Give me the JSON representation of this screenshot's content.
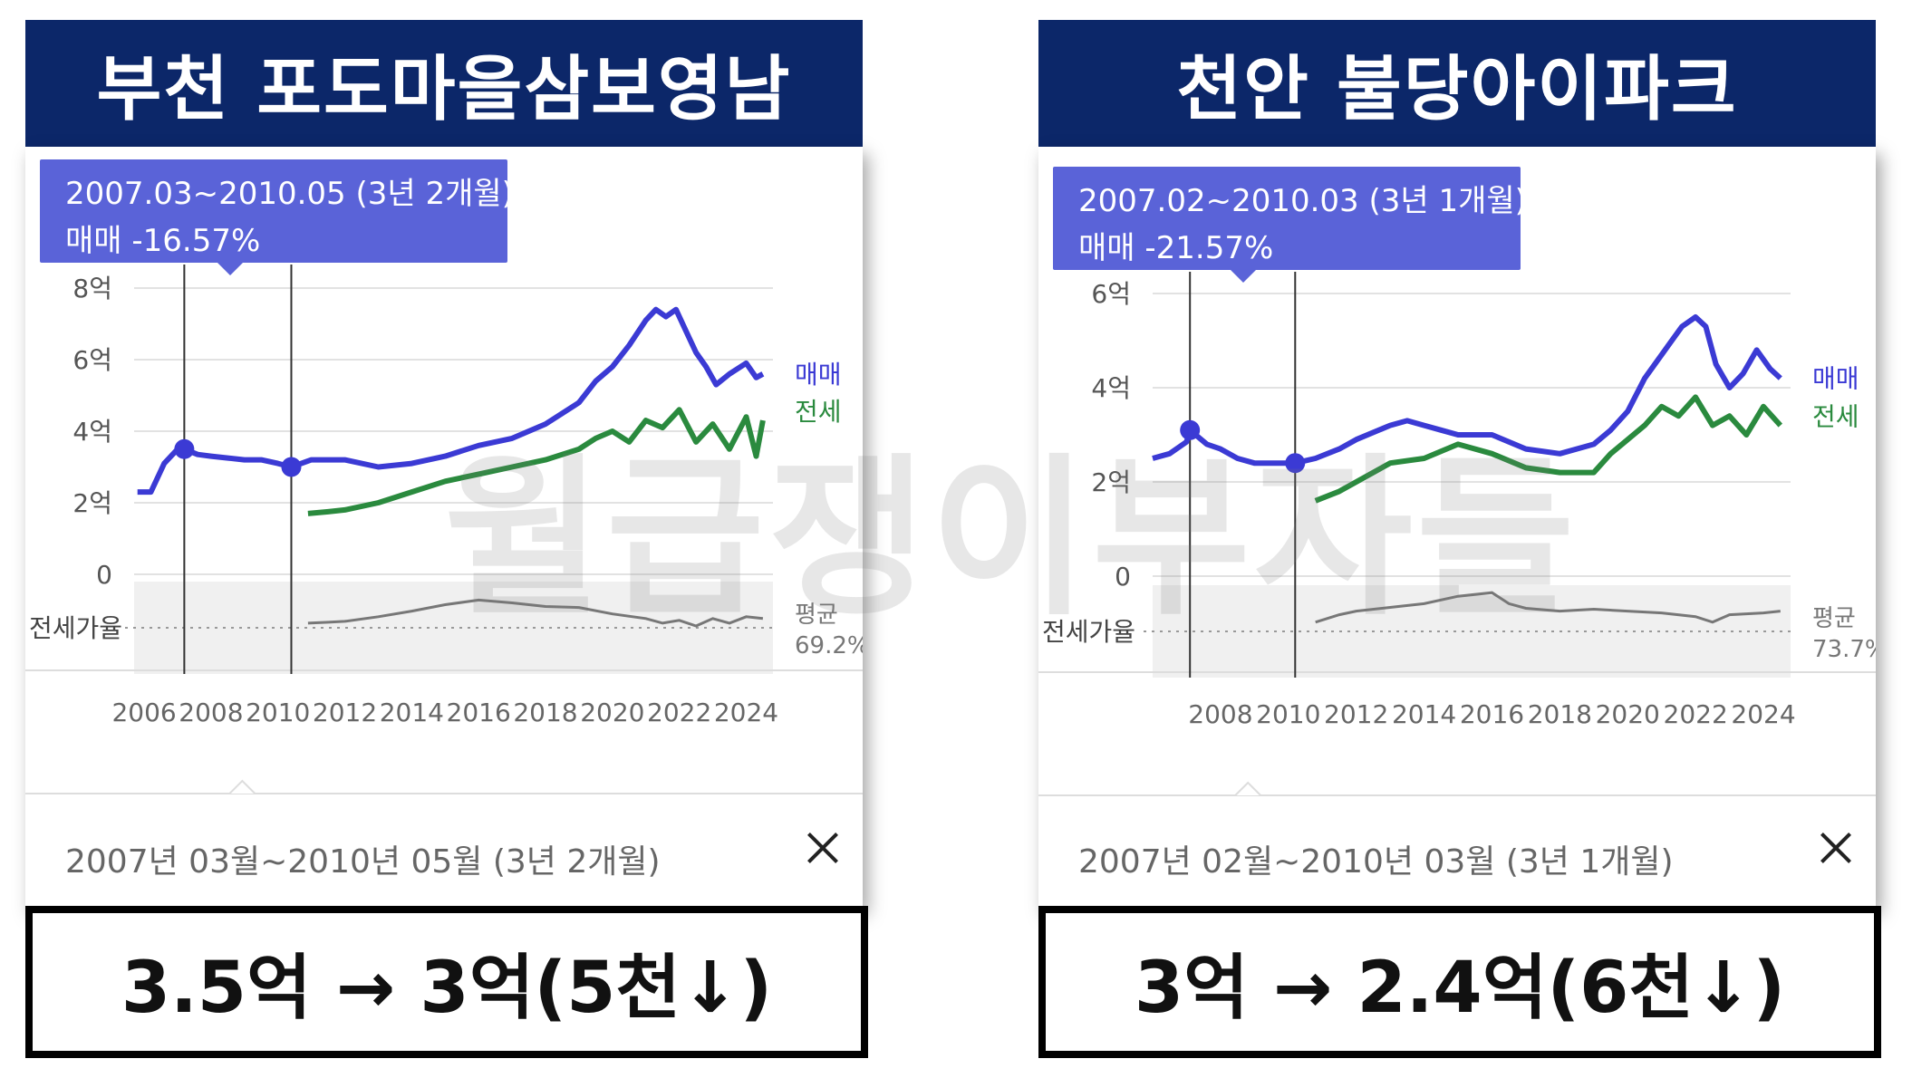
{
  "watermark": "월급쟁이부자들",
  "colors": {
    "title_bg": "#0c2769",
    "tooltip_bg": "#5a63d8",
    "sale": "#3b3ad4",
    "jeonse": "#2a8a3e",
    "ratio": "#777777"
  },
  "panels": [
    {
      "title": "부천 포도마을삼보영남",
      "tooltip": {
        "period": "2007.03~2010.05 (3년 2개월)",
        "change": "매매 -16.57%"
      },
      "footer": "2007년 03월~2010년 05월 (3년 2개월)",
      "result": "3.5억 → 3억(5천↓)",
      "legend": {
        "sale": "매매",
        "jeonse": "전세",
        "ratio_label": "전세가율",
        "avg_label": "평균",
        "avg_value": "69.2%"
      },
      "chart_data": {
        "type": "line",
        "x_range": [
          2005.7,
          2024.8
        ],
        "ylim": [
          0,
          8
        ],
        "y_ticks": [
          0,
          2,
          4,
          6,
          8
        ],
        "y_tick_labels": [
          "0",
          "2억",
          "4억",
          "6억",
          "8억"
        ],
        "x_ticks": [
          2006,
          2008,
          2010,
          2012,
          2014,
          2016,
          2018,
          2020,
          2022,
          2024
        ],
        "x_tick_labels": [
          "2006",
          "2008",
          "2010",
          "2012",
          "2014",
          "2016",
          "2018",
          "2020",
          "2022",
          "2024"
        ],
        "markers": [
          2007.2,
          2010.4
        ],
        "grid": true,
        "series": [
          {
            "name": "매매",
            "x": [
              2005.8,
              2006.2,
              2006.6,
              2007.0,
              2007.2,
              2007.6,
              2008.0,
              2008.5,
              2009.0,
              2009.5,
              2010.0,
              2010.4,
              2011.0,
              2012.0,
              2013.0,
              2014.0,
              2015.0,
              2016.0,
              2017.0,
              2018.0,
              2019.0,
              2019.5,
              2020.0,
              2020.5,
              2021.0,
              2021.3,
              2021.6,
              2021.9,
              2022.2,
              2022.5,
              2022.8,
              2023.1,
              2023.5,
              2024.0,
              2024.3,
              2024.5
            ],
            "values": [
              2.3,
              2.3,
              3.1,
              3.5,
              3.5,
              3.35,
              3.3,
              3.25,
              3.2,
              3.2,
              3.1,
              3.0,
              3.2,
              3.2,
              3.0,
              3.1,
              3.3,
              3.6,
              3.8,
              4.2,
              4.8,
              5.4,
              5.8,
              6.4,
              7.1,
              7.4,
              7.2,
              7.4,
              6.8,
              6.2,
              5.8,
              5.3,
              5.6,
              5.9,
              5.5,
              5.6
            ]
          },
          {
            "name": "전세",
            "x": [
              2010.9,
              2011.5,
              2012.0,
              2013.0,
              2014.0,
              2015.0,
              2016.0,
              2017.0,
              2018.0,
              2019.0,
              2019.5,
              2020.0,
              2020.5,
              2021.0,
              2021.5,
              2022.0,
              2022.5,
              2023.0,
              2023.5,
              2024.0,
              2024.3,
              2024.5
            ],
            "values": [
              1.7,
              1.75,
              1.8,
              2.0,
              2.3,
              2.6,
              2.8,
              3.0,
              3.2,
              3.5,
              3.8,
              4.0,
              3.7,
              4.3,
              4.1,
              4.6,
              3.7,
              4.2,
              3.5,
              4.4,
              3.3,
              4.3
            ]
          },
          {
            "name": "전세가율",
            "x": [
              2010.9,
              2011.5,
              2012.0,
              2013.0,
              2014.0,
              2015.0,
              2016.0,
              2017.0,
              2018.0,
              2019.0,
              2020.0,
              2021.0,
              2021.5,
              2022.0,
              2022.5,
              2023.0,
              2023.5,
              2024.0,
              2024.5
            ],
            "values": [
              0.55,
              0.56,
              0.57,
              0.62,
              0.68,
              0.75,
              0.8,
              0.77,
              0.73,
              0.72,
              0.65,
              0.6,
              0.55,
              0.58,
              0.52,
              0.6,
              0.55,
              0.62,
              0.6
            ]
          }
        ]
      }
    },
    {
      "title": "천안 불당아이파크",
      "tooltip": {
        "period": "2007.02~2010.03 (3년 1개월)",
        "change": "매매 -21.57%"
      },
      "footer": "2007년 02월~2010년 03월 (3년 1개월)",
      "result": "3억 → 2.4억(6천↓)",
      "legend": {
        "sale": "매매",
        "jeonse": "전세",
        "ratio_label": "전세가율",
        "avg_label": "평균",
        "avg_value": "73.7%"
      },
      "chart_data": {
        "type": "line",
        "x_range": [
          2006.0,
          2024.8
        ],
        "ylim": [
          0,
          6
        ],
        "y_ticks": [
          0,
          2,
          4,
          6
        ],
        "y_tick_labels": [
          "0",
          "2억",
          "4억",
          "6억"
        ],
        "x_ticks": [
          2008,
          2010,
          2012,
          2014,
          2016,
          2018,
          2020,
          2022,
          2024
        ],
        "x_tick_labels": [
          "2008",
          "2010",
          "2012",
          "2014",
          "2016",
          "2018",
          "2020",
          "2022",
          "2024"
        ],
        "markers": [
          2007.1,
          2010.2
        ],
        "grid": true,
        "series": [
          {
            "name": "매매",
            "x": [
              2006.0,
              2006.5,
              2007.0,
              2007.1,
              2007.6,
              2008.0,
              2008.5,
              2009.0,
              2009.5,
              2010.2,
              2010.8,
              2011.5,
              2012.0,
              2013.0,
              2013.5,
              2014.0,
              2014.5,
              2015.0,
              2016.0,
              2017.0,
              2018.0,
              2019.0,
              2019.5,
              2020.0,
              2020.5,
              2021.0,
              2021.3,
              2021.6,
              2022.0,
              2022.3,
              2022.6,
              2023.0,
              2023.4,
              2023.8,
              2024.2,
              2024.5
            ],
            "values": [
              2.5,
              2.6,
              2.85,
              3.1,
              2.8,
              2.7,
              2.5,
              2.4,
              2.4,
              2.4,
              2.5,
              2.7,
              2.9,
              3.2,
              3.3,
              3.2,
              3.1,
              3.0,
              3.0,
              2.7,
              2.6,
              2.8,
              3.1,
              3.5,
              4.2,
              4.7,
              5.0,
              5.3,
              5.5,
              5.3,
              4.5,
              4.0,
              4.3,
              4.8,
              4.4,
              4.2
            ]
          },
          {
            "name": "전세",
            "x": [
              2010.8,
              2011.5,
              2012.0,
              2013.0,
              2014.0,
              2015.0,
              2016.0,
              2017.0,
              2018.0,
              2019.0,
              2019.5,
              2020.0,
              2020.5,
              2021.0,
              2021.5,
              2022.0,
              2022.5,
              2023.0,
              2023.5,
              2024.0,
              2024.5
            ],
            "values": [
              1.6,
              1.8,
              2.0,
              2.4,
              2.5,
              2.8,
              2.6,
              2.3,
              2.2,
              2.2,
              2.6,
              2.9,
              3.2,
              3.6,
              3.4,
              3.8,
              3.2,
              3.4,
              3.0,
              3.6,
              3.2
            ]
          },
          {
            "name": "전세가율",
            "x": [
              2010.8,
              2011.5,
              2012.0,
              2013.0,
              2014.0,
              2015.0,
              2016.0,
              2016.5,
              2017.0,
              2018.0,
              2019.0,
              2020.0,
              2021.0,
              2022.0,
              2022.5,
              2023.0,
              2024.0,
              2024.5
            ],
            "values": [
              0.6,
              0.68,
              0.72,
              0.76,
              0.8,
              0.88,
              0.92,
              0.8,
              0.75,
              0.72,
              0.74,
              0.72,
              0.7,
              0.66,
              0.6,
              0.68,
              0.7,
              0.72
            ]
          }
        ]
      }
    }
  ]
}
